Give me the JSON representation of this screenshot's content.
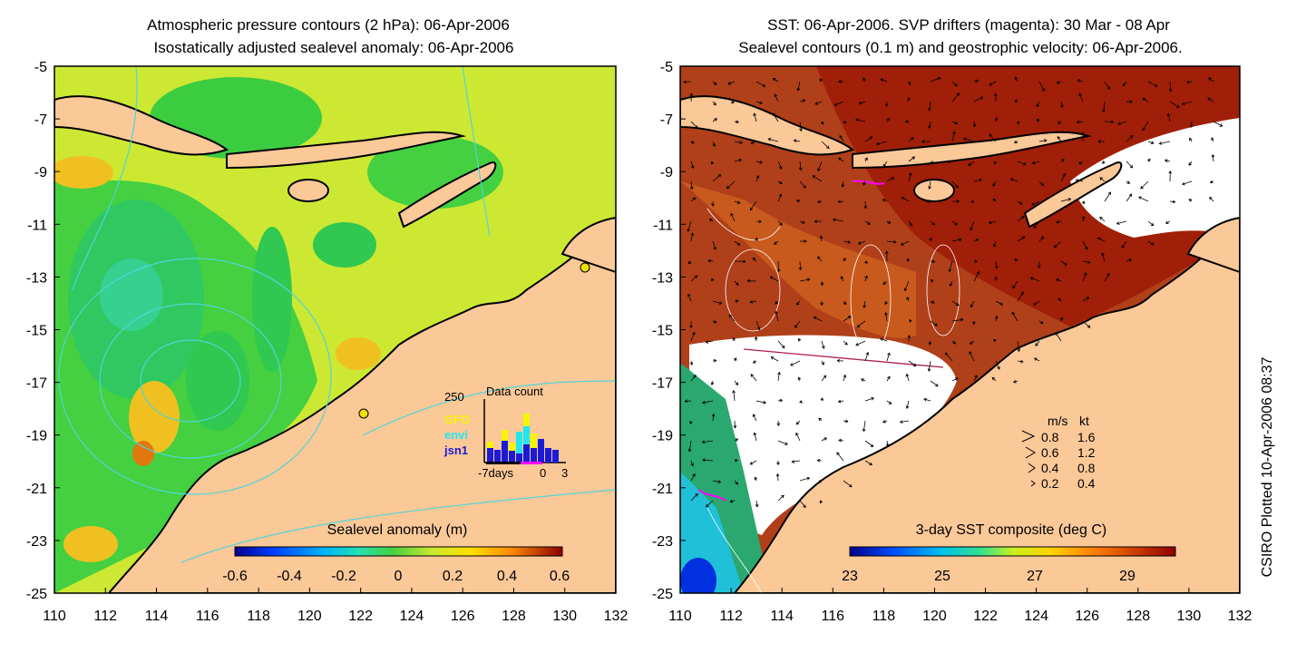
{
  "left_panel": {
    "title_line1": "Atmospheric pressure contours (2 hPa): 06-Apr-2006",
    "title_line2": "Isostatically adjusted sealevel anomaly: 06-Apr-2006",
    "x_ticks": [
      "110",
      "112",
      "114",
      "116",
      "118",
      "120",
      "122",
      "124",
      "126",
      "128",
      "130",
      "132"
    ],
    "y_ticks": [
      "-5",
      "-7",
      "-9",
      "-11",
      "-13",
      "-15",
      "-17",
      "-19",
      "-21",
      "-23",
      "-25"
    ],
    "colorbar_label": "Sealevel anomaly (m)",
    "colorbar_ticks": [
      "-0.6",
      "-0.4",
      "-0.2",
      "0",
      "0.2",
      "0.4",
      "0.6"
    ],
    "data_count": {
      "title": "Data count",
      "max_label": "250",
      "x_labels": [
        "-7days",
        "0",
        "3"
      ],
      "missions": [
        {
          "name": "GFO",
          "color": "#f5f500"
        },
        {
          "name": "envi",
          "color": "#22e6ee"
        },
        {
          "name": "jsn1",
          "color": "#1b1bd6"
        }
      ]
    }
  },
  "right_panel": {
    "title_line1": "SST: 06-Apr-2006. SVP drifters (magenta): 30 Mar - 08 Apr",
    "title_line2": "Sealevel contours (0.1 m) and geostrophic velocity: 06-Apr-2006.",
    "x_ticks": [
      "110",
      "112",
      "114",
      "116",
      "118",
      "120",
      "122",
      "124",
      "126",
      "128",
      "130",
      "132"
    ],
    "y_ticks": [
      "-5",
      "-7",
      "-9",
      "-11",
      "-13",
      "-15",
      "-17",
      "-19",
      "-21",
      "-23",
      "-25"
    ],
    "colorbar_label": "3-day SST composite (deg C)",
    "colorbar_ticks": [
      "23",
      "25",
      "27",
      "29"
    ],
    "velocity_legend": {
      "header_ms": "m/s",
      "header_kt": "kt",
      "rows": [
        {
          "ms": "0.8",
          "kt": "1.6"
        },
        {
          "ms": "0.6",
          "kt": "1.2"
        },
        {
          "ms": "0.4",
          "kt": "0.8"
        },
        {
          "ms": "0.2",
          "kt": "0.4"
        }
      ]
    }
  },
  "credit": "CSIRO Plotted 10-Apr-2006 08:37",
  "colors": {
    "land": "#fbc898",
    "sla_field": "#cce833",
    "sst_field": "#b0401a",
    "cloud": "#ffffff",
    "contour_pressure": "#4fd6d6"
  }
}
